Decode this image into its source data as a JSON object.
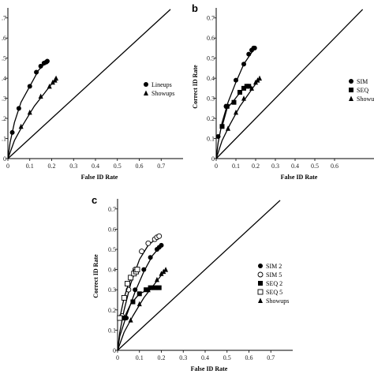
{
  "chart_data": [
    {
      "panel": "",
      "type": "scatter",
      "xlabel": "False ID Rate",
      "ylabel": "",
      "xlim": [
        0,
        0.8
      ],
      "ylim": [
        0,
        0.75
      ],
      "x_ticks": [
        "0",
        "0.1",
        "0.2",
        "0.3",
        "0.4",
        "0.5",
        "0.6",
        "0.7"
      ],
      "y_ticks": [
        "0",
        ".1",
        ".2",
        ".3",
        ".4",
        ".5",
        ".6",
        ".7"
      ],
      "grid": false,
      "legend_position": "right",
      "diagonal": true,
      "series": [
        {
          "name": "Lineups",
          "marker": "circle-filled",
          "points": [
            [
              0.02,
              0.13
            ],
            [
              0.05,
              0.25
            ],
            [
              0.1,
              0.36
            ],
            [
              0.13,
              0.43
            ],
            [
              0.15,
              0.46
            ],
            [
              0.165,
              0.475
            ],
            [
              0.175,
              0.48
            ],
            [
              0.18,
              0.485
            ]
          ],
          "curve": [
            [
              0,
              0
            ],
            [
              0.01,
              0.08
            ],
            [
              0.03,
              0.18
            ],
            [
              0.06,
              0.28
            ],
            [
              0.1,
              0.36
            ],
            [
              0.14,
              0.44
            ],
            [
              0.18,
              0.485
            ]
          ]
        },
        {
          "name": "Showups",
          "marker": "triangle-filled",
          "points": [
            [
              0.06,
              0.16
            ],
            [
              0.1,
              0.23
            ],
            [
              0.15,
              0.31
            ],
            [
              0.19,
              0.36
            ],
            [
              0.205,
              0.38
            ],
            [
              0.215,
              0.39
            ],
            [
              0.22,
              0.4
            ]
          ],
          "curve": [
            [
              0,
              0
            ],
            [
              0.03,
              0.09
            ],
            [
              0.07,
              0.17
            ],
            [
              0.12,
              0.26
            ],
            [
              0.17,
              0.33
            ],
            [
              0.22,
              0.4
            ]
          ]
        }
      ]
    },
    {
      "panel": "b",
      "type": "scatter",
      "xlabel": "False ID Rate",
      "ylabel": "Correct ID Rate",
      "xlim": [
        0,
        0.8
      ],
      "ylim": [
        0,
        0.75
      ],
      "x_ticks": [
        "0",
        "0.1",
        "0.2",
        "0.3",
        "0.4",
        "0.5",
        "0.6"
      ],
      "y_ticks": [
        "0",
        "0.1",
        "0.2",
        "0.3",
        "0.4",
        "0.5",
        "0.6",
        "0.7"
      ],
      "grid": false,
      "legend_position": "right",
      "diagonal": true,
      "series": [
        {
          "name": "SIM",
          "marker": "circle-filled",
          "points": [
            [
              0.01,
              0.11
            ],
            [
              0.05,
              0.26
            ],
            [
              0.1,
              0.39
            ],
            [
              0.14,
              0.47
            ],
            [
              0.165,
              0.52
            ],
            [
              0.18,
              0.54
            ],
            [
              0.19,
              0.55
            ],
            [
              0.195,
              0.55
            ]
          ],
          "curve": [
            [
              0,
              0
            ],
            [
              0.01,
              0.08
            ],
            [
              0.03,
              0.18
            ],
            [
              0.06,
              0.28
            ],
            [
              0.1,
              0.38
            ],
            [
              0.14,
              0.47
            ],
            [
              0.195,
              0.55
            ]
          ]
        },
        {
          "name": "SEQ",
          "marker": "square-filled",
          "points": [
            [
              0.03,
              0.16
            ],
            [
              0.055,
              0.26
            ],
            [
              0.09,
              0.28
            ],
            [
              0.12,
              0.33
            ],
            [
              0.14,
              0.35
            ],
            [
              0.155,
              0.36
            ],
            [
              0.165,
              0.36
            ]
          ],
          "curve": [
            [
              0.03,
              0.16
            ],
            [
              0.055,
              0.25
            ],
            [
              0.09,
              0.29
            ],
            [
              0.13,
              0.34
            ],
            [
              0.165,
              0.36
            ]
          ]
        },
        {
          "name": "Showups",
          "marker": "triangle-filled",
          "points": [
            [
              0.06,
              0.15
            ],
            [
              0.1,
              0.23
            ],
            [
              0.14,
              0.3
            ],
            [
              0.18,
              0.35
            ],
            [
              0.2,
              0.38
            ],
            [
              0.21,
              0.39
            ],
            [
              0.22,
              0.4
            ]
          ],
          "curve": [
            [
              0,
              0
            ],
            [
              0.03,
              0.09
            ],
            [
              0.07,
              0.17
            ],
            [
              0.12,
              0.26
            ],
            [
              0.17,
              0.33
            ],
            [
              0.22,
              0.4
            ]
          ]
        }
      ]
    },
    {
      "panel": "c",
      "type": "scatter",
      "xlabel": "False ID Rate",
      "ylabel": "Correct ID Rate",
      "xlim": [
        0,
        0.8
      ],
      "ylim": [
        0,
        0.75
      ],
      "x_ticks": [
        "0",
        "0.1",
        "0.2",
        "0.3",
        "0.4",
        "0.5",
        "0.6",
        "0.7"
      ],
      "y_ticks": [
        "0",
        "0.1",
        "0.2",
        "0.3",
        "0.4",
        "0.5",
        "0.6",
        "0.7"
      ],
      "grid": false,
      "legend_position": "right",
      "diagonal": true,
      "series": [
        {
          "name": "SIM 2",
          "marker": "circle-filled",
          "points": [
            [
              0.04,
              0.16
            ],
            [
              0.08,
              0.3
            ],
            [
              0.12,
              0.4
            ],
            [
              0.15,
              0.46
            ],
            [
              0.18,
              0.5
            ],
            [
              0.19,
              0.51
            ],
            [
              0.2,
              0.52
            ]
          ],
          "curve": [
            [
              0,
              0
            ],
            [
              0.01,
              0.07
            ],
            [
              0.04,
              0.17
            ],
            [
              0.08,
              0.29
            ],
            [
              0.12,
              0.39
            ],
            [
              0.16,
              0.47
            ],
            [
              0.2,
              0.52
            ]
          ]
        },
        {
          "name": "SIM 5",
          "marker": "circle-open",
          "points": [
            [
              0.02,
              0.17
            ],
            [
              0.05,
              0.3
            ],
            [
              0.08,
              0.4
            ],
            [
              0.11,
              0.49
            ],
            [
              0.14,
              0.53
            ],
            [
              0.17,
              0.55
            ],
            [
              0.18,
              0.56
            ],
            [
              0.19,
              0.565
            ]
          ],
          "curve": [
            [
              0,
              0
            ],
            [
              0.01,
              0.09
            ],
            [
              0.03,
              0.2
            ],
            [
              0.06,
              0.33
            ],
            [
              0.1,
              0.45
            ],
            [
              0.14,
              0.52
            ],
            [
              0.19,
              0.565
            ]
          ]
        },
        {
          "name": "SEQ 2",
          "marker": "square-filled",
          "points": [
            [
              0.03,
              0.16
            ],
            [
              0.07,
              0.24
            ],
            [
              0.1,
              0.28
            ],
            [
              0.13,
              0.3
            ],
            [
              0.15,
              0.31
            ],
            [
              0.17,
              0.31
            ],
            [
              0.19,
              0.31
            ]
          ],
          "curve": [
            [
              0.03,
              0.16
            ],
            [
              0.06,
              0.23
            ],
            [
              0.1,
              0.28
            ],
            [
              0.14,
              0.3
            ],
            [
              0.19,
              0.31
            ]
          ]
        },
        {
          "name": "SEQ 5",
          "marker": "square-open",
          "points": [
            [
              0.01,
              0.16
            ],
            [
              0.03,
              0.26
            ],
            [
              0.045,
              0.33
            ],
            [
              0.06,
              0.36
            ],
            [
              0.075,
              0.38
            ],
            [
              0.085,
              0.39
            ],
            [
              0.09,
              0.4
            ]
          ],
          "curve": [
            [
              0.01,
              0.16
            ],
            [
              0.03,
              0.26
            ],
            [
              0.05,
              0.33
            ],
            [
              0.07,
              0.37
            ],
            [
              0.09,
              0.4
            ]
          ]
        },
        {
          "name": "Showups",
          "marker": "triangle-filled",
          "points": [
            [
              0.06,
              0.15
            ],
            [
              0.1,
              0.23
            ],
            [
              0.14,
              0.3
            ],
            [
              0.18,
              0.35
            ],
            [
              0.2,
              0.38
            ],
            [
              0.21,
              0.39
            ],
            [
              0.22,
              0.4
            ]
          ],
          "curve": [
            [
              0,
              0
            ],
            [
              0.03,
              0.09
            ],
            [
              0.07,
              0.17
            ],
            [
              0.12,
              0.26
            ],
            [
              0.17,
              0.33
            ],
            [
              0.22,
              0.4
            ]
          ]
        }
      ]
    }
  ]
}
